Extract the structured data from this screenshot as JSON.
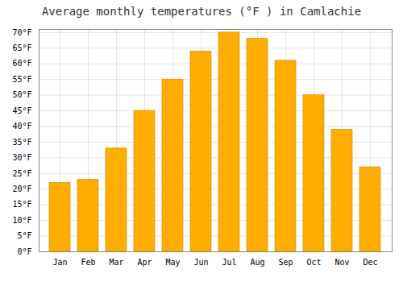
{
  "chart_data": {
    "type": "bar",
    "title": "Average monthly temperatures (°F ) in Camlachie",
    "categories": [
      "Jan",
      "Feb",
      "Mar",
      "Apr",
      "May",
      "Jun",
      "Jul",
      "Aug",
      "Sep",
      "Oct",
      "Nov",
      "Dec"
    ],
    "values": [
      22,
      23,
      33,
      45,
      55,
      64,
      70,
      68,
      61,
      50,
      39,
      27
    ],
    "color": "#FFAD00",
    "ylim": [
      0,
      71
    ],
    "yticks": [
      {
        "value": 0,
        "label": "0°F"
      },
      {
        "value": 5,
        "label": "5°F"
      },
      {
        "value": 10,
        "label": "10°F"
      },
      {
        "value": 15,
        "label": "15°F"
      },
      {
        "value": 20,
        "label": "20°F"
      },
      {
        "value": 25,
        "label": "25°F"
      },
      {
        "value": 30,
        "label": "30°F"
      },
      {
        "value": 35,
        "label": "35°F"
      },
      {
        "value": 40,
        "label": "40°F"
      },
      {
        "value": 45,
        "label": "45°F"
      },
      {
        "value": 50,
        "label": "50°F"
      },
      {
        "value": 55,
        "label": "55°F"
      },
      {
        "value": 60,
        "label": "60°F"
      },
      {
        "value": 65,
        "label": "65°F"
      },
      {
        "value": 70,
        "label": "70°F"
      }
    ],
    "grid": true
  }
}
